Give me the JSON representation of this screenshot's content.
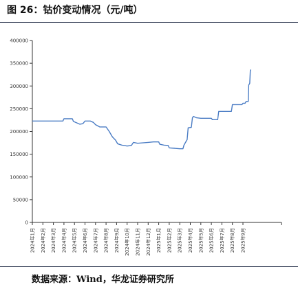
{
  "figure": {
    "title": "图 26：钴价变动情况（元/吨）",
    "source": "数据来源：Wind，华龙证券研究所"
  },
  "colors": {
    "line": "#4a7cc4",
    "axis": "#333333",
    "rule": "#1f2a44",
    "text": "#333333"
  },
  "chart_data": {
    "type": "line",
    "title": "",
    "xlabel": "",
    "ylabel": "",
    "ylim": [
      0,
      400000
    ],
    "yticks": [
      0,
      50000,
      100000,
      150000,
      200000,
      250000,
      300000,
      350000,
      400000
    ],
    "grid": false,
    "legend": "none",
    "x_ticks": [
      "2024年1月",
      "2024年2月",
      "2024年3月",
      "2024年4月",
      "2024年5月",
      "2024年6月",
      "2024年7月",
      "2024年8月",
      "2024年9月",
      "2024年10月",
      "2024年11月",
      "2024年12月",
      "2025年1月",
      "2025年2月",
      "2025年3月",
      "2025年4月",
      "2025年5月",
      "2025年6月",
      "2025年7月",
      "2025年8月",
      "2025年9月"
    ],
    "x_range": [
      0,
      20.75
    ],
    "series": [
      {
        "name": "",
        "points": [
          [
            0.0,
            223000
          ],
          [
            1.0,
            223000
          ],
          [
            2.0,
            223000
          ],
          [
            2.9,
            223000
          ],
          [
            3.0,
            228000
          ],
          [
            3.8,
            228000
          ],
          [
            3.9,
            222000
          ],
          [
            4.2,
            219000
          ],
          [
            4.5,
            216000
          ],
          [
            4.8,
            217000
          ],
          [
            5.0,
            223000
          ],
          [
            5.5,
            223000
          ],
          [
            5.8,
            220000
          ],
          [
            6.0,
            215000
          ],
          [
            6.4,
            210000
          ],
          [
            7.0,
            210000
          ],
          [
            7.3,
            200000
          ],
          [
            7.6,
            188000
          ],
          [
            7.9,
            181000
          ],
          [
            8.1,
            173000
          ],
          [
            8.5,
            170000
          ],
          [
            9.0,
            168000
          ],
          [
            9.4,
            169000
          ],
          [
            9.6,
            176000
          ],
          [
            10.0,
            174000
          ],
          [
            10.5,
            175000
          ],
          [
            11.0,
            176000
          ],
          [
            11.5,
            177000
          ],
          [
            12.0,
            177000
          ],
          [
            12.1,
            172000
          ],
          [
            12.5,
            170000
          ],
          [
            12.9,
            169000
          ],
          [
            13.0,
            164000
          ],
          [
            13.5,
            163000
          ],
          [
            14.0,
            162000
          ],
          [
            14.3,
            162000
          ],
          [
            14.4,
            170000
          ],
          [
            14.7,
            182000
          ],
          [
            14.8,
            208000
          ],
          [
            15.1,
            209000
          ],
          [
            15.2,
            230000
          ],
          [
            15.3,
            233000
          ],
          [
            15.6,
            230000
          ],
          [
            16.0,
            229000
          ],
          [
            16.5,
            229000
          ],
          [
            17.0,
            229000
          ],
          [
            17.1,
            226000
          ],
          [
            17.6,
            226000
          ],
          [
            17.7,
            244000
          ],
          [
            18.0,
            244000
          ],
          [
            18.5,
            244000
          ],
          [
            18.9,
            244000
          ],
          [
            19.0,
            259000
          ],
          [
            19.5,
            259000
          ],
          [
            19.9,
            259000
          ],
          [
            20.0,
            262000
          ],
          [
            20.2,
            262000
          ],
          [
            20.3,
            266000
          ],
          [
            20.5,
            266000
          ],
          [
            20.55,
            302000
          ],
          [
            20.65,
            306000
          ],
          [
            20.7,
            334000
          ],
          [
            20.75,
            336000
          ]
        ]
      }
    ]
  }
}
